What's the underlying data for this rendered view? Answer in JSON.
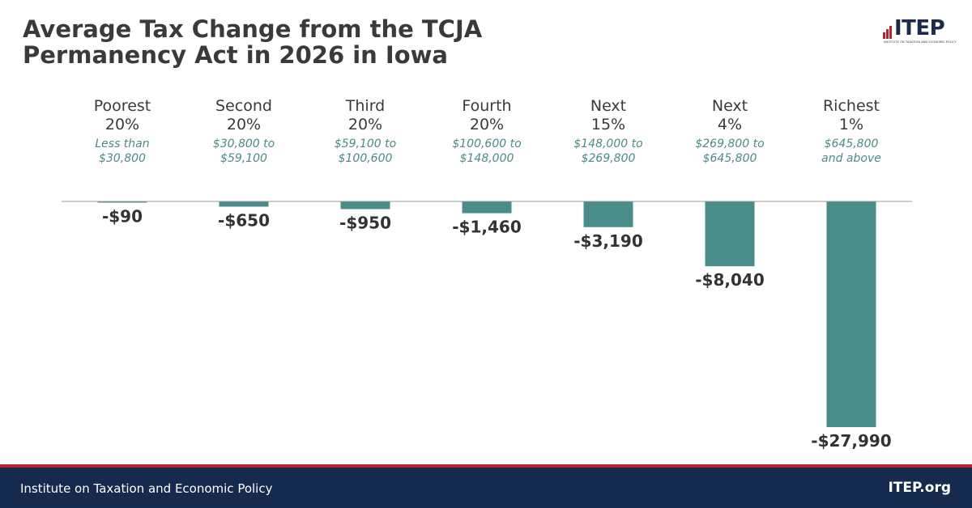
{
  "header": {
    "title_line1": "Average Tax Change from the TCJA",
    "title_line2": "Permanency Act in 2026 in Iowa"
  },
  "logo": {
    "text": "ITEP",
    "tagline": "INSTITUTE ON TAXATION AND ECONOMIC POLICY"
  },
  "footer": {
    "org": "Institute on Taxation and Economic Policy",
    "url": "ITEP.org"
  },
  "colors": {
    "bar": "#4a8c89",
    "range_text": "#4b8b88",
    "footer_bg": "#152a4c",
    "footer_stripe": "#b5242a"
  },
  "chart_data": {
    "type": "bar",
    "title": "Average Tax Change from the TCJA Permanency Act in 2026 in Iowa",
    "categories": [
      {
        "name": [
          "Poorest",
          "20%"
        ],
        "range": [
          "Less than",
          "$30,800"
        ]
      },
      {
        "name": [
          "Second",
          "20%"
        ],
        "range": [
          "$30,800 to",
          "$59,100"
        ]
      },
      {
        "name": [
          "Third",
          "20%"
        ],
        "range": [
          "$59,100 to",
          "$100,600"
        ]
      },
      {
        "name": [
          "Fourth",
          "20%"
        ],
        "range": [
          "$100,600 to",
          "$148,000"
        ]
      },
      {
        "name": [
          "Next",
          "15%"
        ],
        "range": [
          "$148,000 to",
          "$269,800"
        ]
      },
      {
        "name": [
          "Next",
          "4%"
        ],
        "range": [
          "$269,800 to",
          "$645,800"
        ]
      },
      {
        "name": [
          "Richest",
          "1%"
        ],
        "range": [
          "$645,800",
          "and above"
        ]
      }
    ],
    "values": [
      -90,
      -650,
      -950,
      -1460,
      -3190,
      -8040,
      -27990
    ],
    "labels": [
      "-$90",
      "-$650",
      "-$950",
      "-$1,460",
      "-$3,190",
      "-$8,040",
      "-$27,990"
    ],
    "ylim": [
      -27990,
      0
    ],
    "xlabel": "",
    "ylabel": "",
    "grid": false,
    "legend": "none"
  }
}
